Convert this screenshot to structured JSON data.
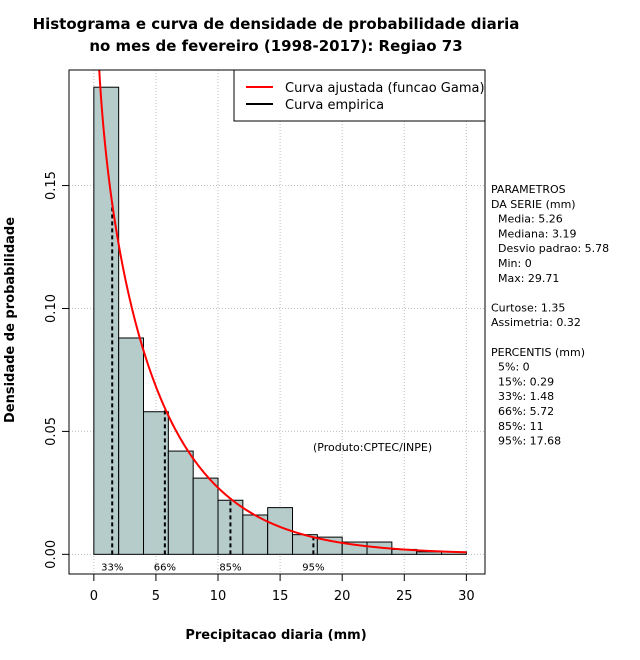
{
  "chart_data": {
    "type": "bar",
    "title_lines": [
      "Histograma e curva de densidade de probabilidade diaria",
      "no mes de fevereiro (1998-2017): Regiao 73"
    ],
    "xlabel": "Precipitacao diaria (mm)",
    "ylabel": "Densidade de probabilidade",
    "xlim": [
      -2,
      31.5
    ],
    "ylim": [
      -0.008,
      0.197
    ],
    "xticks": [
      0,
      5,
      10,
      15,
      20,
      25,
      30
    ],
    "yticks": [
      0.0,
      0.05,
      0.1,
      0.15
    ],
    "ytick_labels": [
      "0.00",
      "0.05",
      "0.10",
      "0.15"
    ],
    "grid": true,
    "bins": [
      {
        "x0": 0,
        "x1": 2,
        "density": 0.19
      },
      {
        "x0": 2,
        "x1": 4,
        "density": 0.088
      },
      {
        "x0": 4,
        "x1": 6,
        "density": 0.058
      },
      {
        "x0": 6,
        "x1": 8,
        "density": 0.042
      },
      {
        "x0": 8,
        "x1": 10,
        "density": 0.031
      },
      {
        "x0": 10,
        "x1": 12,
        "density": 0.022
      },
      {
        "x0": 12,
        "x1": 14,
        "density": 0.016
      },
      {
        "x0": 14,
        "x1": 16,
        "density": 0.019
      },
      {
        "x0": 16,
        "x1": 18,
        "density": 0.008
      },
      {
        "x0": 18,
        "x1": 20,
        "density": 0.007
      },
      {
        "x0": 20,
        "x1": 22,
        "density": 0.005
      },
      {
        "x0": 22,
        "x1": 24,
        "density": 0.005
      },
      {
        "x0": 24,
        "x1": 26,
        "density": 0.002
      },
      {
        "x0": 26,
        "x1": 28,
        "density": 0.001
      },
      {
        "x0": 28,
        "x1": 30,
        "density": 0.001
      }
    ],
    "gamma_fit": {
      "shape": 0.88,
      "rate": 0.168,
      "x_from": 0.3,
      "x_to": 30
    },
    "percentile_markers": [
      {
        "label": "33%",
        "x": 1.48
      },
      {
        "label": "66%",
        "x": 5.72
      },
      {
        "label": "85%",
        "x": 11
      },
      {
        "label": "95%",
        "x": 17.68
      }
    ],
    "legend": {
      "placement": "top-right",
      "entries": [
        {
          "label": "Curva ajustada (funcao Gama)",
          "color": "#ff0000"
        },
        {
          "label": "Curva empirica",
          "color": "#000000"
        }
      ]
    },
    "annotation": "(Produto:CPTEC/INPE)",
    "colors": {
      "bar_fill": "#b5cccb",
      "curve": "#ff0000",
      "grid": "#bebebe"
    }
  },
  "side_panel": {
    "lines": [
      "PARAMETROS",
      "DA SERIE (mm)",
      "  Media: 5.26",
      "  Mediana: 3.19",
      "  Desvio padrao: 5.78",
      "  Min: 0",
      "  Max: 29.71",
      "",
      "Curtose: 1.35",
      "Assimetria: 0.32",
      "",
      "PERCENTIS (mm)",
      "  5%: 0",
      "  15%: 0.29",
      "  33%: 1.48",
      "  66%: 5.72",
      "  85%: 11",
      "  95%: 17.68"
    ]
  }
}
